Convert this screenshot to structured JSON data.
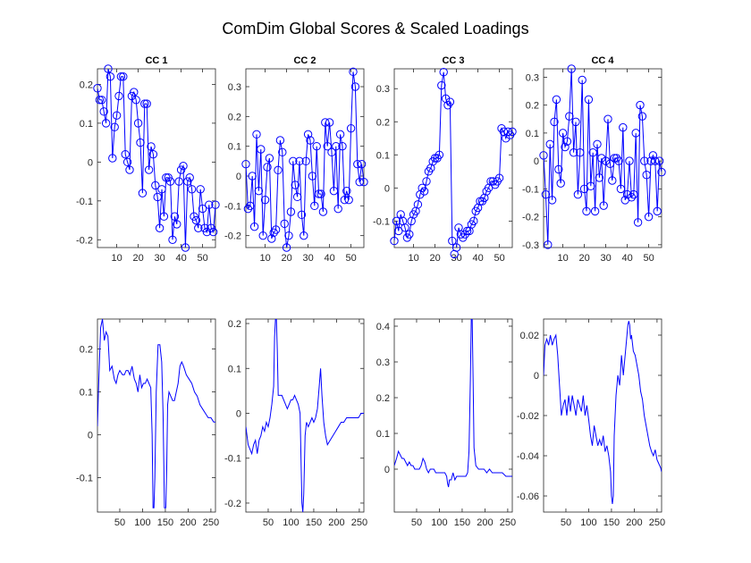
{
  "figure": {
    "title": "ComDim Global Scores & Scaled Loadings",
    "line_color": "#0000ff"
  },
  "chart_data": [
    {
      "type": "line",
      "marker": "circle",
      "title": "CC 1",
      "xlim": [
        1,
        56
      ],
      "ylim": [
        -0.22,
        0.24
      ],
      "xticks": [
        10,
        20,
        30,
        40,
        50
      ],
      "yticks": [
        -0.2,
        -0.1,
        0,
        0.1,
        0.2
      ],
      "y": [
        0.19,
        0.16,
        0.16,
        0.13,
        0.1,
        0.24,
        0.22,
        0.01,
        0.09,
        0.12,
        0.17,
        0.22,
        0.22,
        0.02,
        0.0,
        -0.02,
        0.17,
        0.18,
        0.16,
        0.1,
        0.05,
        -0.08,
        0.15,
        0.15,
        -0.02,
        0.04,
        0.02,
        -0.06,
        -0.09,
        -0.17,
        -0.07,
        -0.14,
        -0.04,
        -0.04,
        -0.05,
        -0.2,
        -0.14,
        -0.16,
        -0.05,
        -0.02,
        -0.01,
        -0.22,
        -0.05,
        -0.04,
        -0.07,
        -0.14,
        -0.15,
        -0.17,
        -0.07,
        -0.12,
        -0.17,
        -0.18,
        -0.11,
        -0.17,
        -0.18,
        -0.11
      ]
    },
    {
      "type": "line",
      "marker": "circle",
      "title": "CC 2",
      "xlim": [
        1,
        56
      ],
      "ylim": [
        -0.24,
        0.36
      ],
      "xticks": [
        10,
        20,
        30,
        40,
        50
      ],
      "yticks": [
        -0.2,
        -0.1,
        0,
        0.1,
        0.2,
        0.3
      ],
      "y": [
        0.04,
        -0.11,
        -0.1,
        0.0,
        -0.17,
        0.14,
        -0.05,
        0.09,
        -0.2,
        -0.08,
        0.03,
        0.06,
        -0.21,
        -0.19,
        -0.18,
        0.02,
        0.12,
        0.08,
        -0.16,
        -0.24,
        -0.2,
        -0.12,
        0.05,
        -0.03,
        -0.07,
        0.05,
        -0.13,
        -0.2,
        0.05,
        0.14,
        0.12,
        0.0,
        -0.1,
        0.1,
        -0.06,
        -0.06,
        -0.12,
        0.18,
        0.1,
        0.18,
        0.08,
        -0.05,
        0.1,
        -0.11,
        0.14,
        0.1,
        -0.08,
        -0.05,
        -0.08,
        0.16,
        0.35,
        0.3,
        0.04,
        -0.02,
        0.04,
        -0.02
      ]
    },
    {
      "type": "line",
      "marker": "circle",
      "title": "CC 3",
      "xlim": [
        1,
        56
      ],
      "ylim": [
        -0.18,
        0.36
      ],
      "xticks": [
        10,
        20,
        30,
        40,
        50
      ],
      "yticks": [
        -0.1,
        0,
        0.1,
        0.2,
        0.3
      ],
      "y": [
        -0.16,
        -0.1,
        -0.13,
        -0.08,
        -0.1,
        -0.12,
        -0.15,
        -0.14,
        -0.1,
        -0.08,
        -0.07,
        -0.05,
        -0.02,
        0.0,
        -0.01,
        0.02,
        0.05,
        0.06,
        0.08,
        0.09,
        0.09,
        0.1,
        0.31,
        0.35,
        0.27,
        0.25,
        0.26,
        -0.16,
        -0.2,
        -0.18,
        -0.12,
        -0.14,
        -0.15,
        -0.14,
        -0.13,
        -0.13,
        -0.11,
        -0.1,
        -0.07,
        -0.06,
        -0.04,
        -0.04,
        -0.03,
        -0.01,
        0.0,
        0.02,
        0.02,
        0.01,
        0.02,
        0.03,
        0.18,
        0.17,
        0.15,
        0.17,
        0.16,
        0.17
      ]
    },
    {
      "type": "line",
      "marker": "circle",
      "title": "CC 4",
      "xlim": [
        1,
        56
      ],
      "ylim": [
        -0.31,
        0.33
      ],
      "xticks": [
        10,
        20,
        30,
        40,
        50
      ],
      "yticks": [
        -0.3,
        -0.2,
        -0.1,
        0,
        0.1,
        0.2,
        0.3
      ],
      "y": [
        0.02,
        -0.12,
        -0.3,
        0.06,
        -0.14,
        0.14,
        0.22,
        -0.03,
        -0.08,
        0.1,
        0.05,
        0.07,
        0.16,
        0.33,
        0.03,
        0.14,
        -0.12,
        0.03,
        0.29,
        -0.1,
        -0.18,
        0.22,
        -0.09,
        0.03,
        -0.18,
        0.06,
        -0.06,
        0.01,
        -0.16,
        0.0,
        0.15,
        -0.01,
        -0.07,
        0.01,
        0.01,
        0.0,
        -0.1,
        0.12,
        -0.14,
        -0.12,
        0.0,
        -0.13,
        -0.12,
        0.1,
        -0.22,
        0.2,
        0.16,
        0.0,
        -0.05,
        -0.2,
        0.0,
        0.02,
        0.0,
        -0.18,
        0.0,
        -0.04
      ]
    },
    {
      "type": "line",
      "title": "",
      "xlim": [
        1,
        260
      ],
      "ylim": [
        -0.18,
        0.27
      ],
      "xticks": [
        50,
        100,
        150,
        200,
        250
      ],
      "yticks": [
        -0.1,
        0,
        0.1,
        0.2
      ],
      "points": [
        [
          1,
          0.02
        ],
        [
          4,
          0.13
        ],
        [
          8,
          0.25
        ],
        [
          12,
          0.27
        ],
        [
          16,
          0.22
        ],
        [
          20,
          0.24
        ],
        [
          24,
          0.23
        ],
        [
          28,
          0.15
        ],
        [
          33,
          0.16
        ],
        [
          38,
          0.13
        ],
        [
          42,
          0.12
        ],
        [
          46,
          0.14
        ],
        [
          50,
          0.15
        ],
        [
          56,
          0.14
        ],
        [
          60,
          0.14
        ],
        [
          64,
          0.15
        ],
        [
          68,
          0.15
        ],
        [
          72,
          0.14
        ],
        [
          77,
          0.16
        ],
        [
          82,
          0.13
        ],
        [
          86,
          0.12
        ],
        [
          90,
          0.1
        ],
        [
          94,
          0.14
        ],
        [
          98,
          0.11
        ],
        [
          102,
          0.12
        ],
        [
          106,
          0.12
        ],
        [
          110,
          0.13
        ],
        [
          114,
          0.12
        ],
        [
          118,
          0.11
        ],
        [
          121,
          0.0
        ],
        [
          123,
          -0.17
        ],
        [
          125,
          -0.17
        ],
        [
          127,
          -0.1
        ],
        [
          130,
          0.1
        ],
        [
          134,
          0.21
        ],
        [
          138,
          0.21
        ],
        [
          142,
          0.17
        ],
        [
          145,
          0.05
        ],
        [
          148,
          -0.17
        ],
        [
          151,
          -0.17
        ],
        [
          153,
          -0.08
        ],
        [
          155,
          0.07
        ],
        [
          158,
          0.1
        ],
        [
          162,
          0.09
        ],
        [
          166,
          0.08
        ],
        [
          170,
          0.08
        ],
        [
          174,
          0.1
        ],
        [
          178,
          0.12
        ],
        [
          182,
          0.16
        ],
        [
          186,
          0.17
        ],
        [
          190,
          0.16
        ],
        [
          196,
          0.14
        ],
        [
          202,
          0.13
        ],
        [
          208,
          0.12
        ],
        [
          214,
          0.1
        ],
        [
          220,
          0.09
        ],
        [
          226,
          0.07
        ],
        [
          232,
          0.06
        ],
        [
          238,
          0.05
        ],
        [
          244,
          0.04
        ],
        [
          250,
          0.04
        ],
        [
          256,
          0.03
        ],
        [
          260,
          0.03
        ]
      ]
    },
    {
      "type": "line",
      "title": "",
      "xlim": [
        1,
        260
      ],
      "ylim": [
        -0.22,
        0.21
      ],
      "xticks": [
        50,
        100,
        150,
        200,
        250
      ],
      "yticks": [
        -0.2,
        -0.1,
        0,
        0.1,
        0.2
      ],
      "points": [
        [
          1,
          -0.03
        ],
        [
          6,
          -0.07
        ],
        [
          10,
          -0.08
        ],
        [
          14,
          -0.09
        ],
        [
          18,
          -0.07
        ],
        [
          22,
          -0.06
        ],
        [
          26,
          -0.09
        ],
        [
          30,
          -0.06
        ],
        [
          34,
          -0.05
        ],
        [
          38,
          -0.03
        ],
        [
          42,
          -0.04
        ],
        [
          46,
          -0.02
        ],
        [
          50,
          -0.03
        ],
        [
          54,
          -0.01
        ],
        [
          58,
          0.02
        ],
        [
          62,
          0.06
        ],
        [
          64,
          0.17
        ],
        [
          66,
          0.21
        ],
        [
          68,
          0.21
        ],
        [
          70,
          0.14
        ],
        [
          72,
          0.04
        ],
        [
          76,
          0.04
        ],
        [
          80,
          0.04
        ],
        [
          84,
          0.03
        ],
        [
          88,
          0.02
        ],
        [
          92,
          0.01
        ],
        [
          96,
          0.02
        ],
        [
          100,
          0.03
        ],
        [
          104,
          0.03
        ],
        [
          108,
          0.04
        ],
        [
          112,
          0.03
        ],
        [
          116,
          0.02
        ],
        [
          120,
          0.0
        ],
        [
          122,
          -0.1
        ],
        [
          124,
          -0.2
        ],
        [
          126,
          -0.22
        ],
        [
          128,
          -0.18
        ],
        [
          131,
          -0.05
        ],
        [
          134,
          -0.02
        ],
        [
          138,
          -0.03
        ],
        [
          142,
          -0.02
        ],
        [
          146,
          -0.01
        ],
        [
          150,
          -0.02
        ],
        [
          154,
          -0.01
        ],
        [
          158,
          0.01
        ],
        [
          162,
          0.06
        ],
        [
          165,
          0.1
        ],
        [
          168,
          0.04
        ],
        [
          172,
          -0.02
        ],
        [
          176,
          -0.05
        ],
        [
          180,
          -0.07
        ],
        [
          186,
          -0.06
        ],
        [
          192,
          -0.05
        ],
        [
          198,
          -0.04
        ],
        [
          204,
          -0.03
        ],
        [
          210,
          -0.02
        ],
        [
          216,
          -0.02
        ],
        [
          222,
          -0.01
        ],
        [
          228,
          -0.01
        ],
        [
          234,
          -0.01
        ],
        [
          240,
          -0.01
        ],
        [
          248,
          -0.01
        ],
        [
          254,
          0.0
        ],
        [
          260,
          0.0
        ]
      ]
    },
    {
      "type": "line",
      "title": "",
      "xlim": [
        1,
        260
      ],
      "ylim": [
        -0.12,
        0.42
      ],
      "xticks": [
        50,
        100,
        150,
        200,
        250
      ],
      "yticks": [
        0,
        0.1,
        0.2,
        0.3,
        0.4
      ],
      "points": [
        [
          1,
          0.01
        ],
        [
          6,
          0.03
        ],
        [
          10,
          0.05
        ],
        [
          14,
          0.04
        ],
        [
          18,
          0.03
        ],
        [
          22,
          0.03
        ],
        [
          26,
          0.02
        ],
        [
          30,
          0.01
        ],
        [
          34,
          0.02
        ],
        [
          38,
          0.01
        ],
        [
          42,
          0.01
        ],
        [
          46,
          0.0
        ],
        [
          50,
          0.0
        ],
        [
          56,
          0.0
        ],
        [
          60,
          0.01
        ],
        [
          64,
          0.03
        ],
        [
          68,
          0.02
        ],
        [
          72,
          0.0
        ],
        [
          76,
          -0.01
        ],
        [
          80,
          0.0
        ],
        [
          84,
          0.0
        ],
        [
          88,
          0.0
        ],
        [
          92,
          -0.01
        ],
        [
          96,
          -0.01
        ],
        [
          100,
          -0.01
        ],
        [
          104,
          -0.01
        ],
        [
          108,
          -0.01
        ],
        [
          112,
          -0.01
        ],
        [
          116,
          -0.02
        ],
        [
          118,
          -0.04
        ],
        [
          120,
          -0.05
        ],
        [
          122,
          -0.03
        ],
        [
          126,
          -0.03
        ],
        [
          130,
          -0.01
        ],
        [
          134,
          -0.03
        ],
        [
          138,
          -0.02
        ],
        [
          142,
          -0.02
        ],
        [
          146,
          -0.02
        ],
        [
          150,
          -0.02
        ],
        [
          154,
          -0.02
        ],
        [
          158,
          -0.02
        ],
        [
          162,
          -0.01
        ],
        [
          165,
          0.05
        ],
        [
          168,
          0.25
        ],
        [
          170,
          0.42
        ],
        [
          172,
          0.42
        ],
        [
          174,
          0.25
        ],
        [
          176,
          0.06
        ],
        [
          180,
          0.01
        ],
        [
          186,
          0.0
        ],
        [
          192,
          0.0
        ],
        [
          198,
          0.0
        ],
        [
          204,
          -0.01
        ],
        [
          210,
          0.0
        ],
        [
          216,
          -0.01
        ],
        [
          222,
          -0.01
        ],
        [
          230,
          -0.01
        ],
        [
          238,
          -0.01
        ],
        [
          246,
          -0.02
        ],
        [
          254,
          -0.02
        ],
        [
          260,
          -0.02
        ]
      ]
    },
    {
      "type": "line",
      "title": "",
      "xlim": [
        1,
        260
      ],
      "ylim": [
        -0.068,
        0.028
      ],
      "xticks": [
        50,
        100,
        150,
        200,
        250
      ],
      "yticks": [
        -0.06,
        -0.04,
        -0.02,
        0,
        0.02
      ],
      "points": [
        [
          1,
          0.0
        ],
        [
          4,
          0.015
        ],
        [
          8,
          0.018
        ],
        [
          12,
          0.015
        ],
        [
          16,
          0.02
        ],
        [
          20,
          0.015
        ],
        [
          24,
          0.018
        ],
        [
          28,
          0.02
        ],
        [
          32,
          0.01
        ],
        [
          36,
          -0.005
        ],
        [
          40,
          -0.02
        ],
        [
          44,
          -0.015
        ],
        [
          48,
          -0.012
        ],
        [
          52,
          -0.02
        ],
        [
          56,
          -0.01
        ],
        [
          60,
          -0.018
        ],
        [
          64,
          -0.01
        ],
        [
          68,
          -0.015
        ],
        [
          72,
          -0.02
        ],
        [
          76,
          -0.012
        ],
        [
          80,
          -0.015
        ],
        [
          84,
          -0.018
        ],
        [
          88,
          -0.01
        ],
        [
          92,
          -0.02
        ],
        [
          96,
          -0.015
        ],
        [
          100,
          -0.022
        ],
        [
          104,
          -0.03
        ],
        [
          108,
          -0.035
        ],
        [
          112,
          -0.025
        ],
        [
          116,
          -0.03
        ],
        [
          120,
          -0.035
        ],
        [
          124,
          -0.032
        ],
        [
          128,
          -0.035
        ],
        [
          132,
          -0.03
        ],
        [
          136,
          -0.038
        ],
        [
          140,
          -0.035
        ],
        [
          144,
          -0.04
        ],
        [
          148,
          -0.048
        ],
        [
          150,
          -0.06
        ],
        [
          152,
          -0.064
        ],
        [
          154,
          -0.06
        ],
        [
          156,
          -0.03
        ],
        [
          160,
          -0.01
        ],
        [
          164,
          0.0
        ],
        [
          168,
          -0.005
        ],
        [
          172,
          0.01
        ],
        [
          176,
          0.0
        ],
        [
          180,
          0.01
        ],
        [
          184,
          0.02
        ],
        [
          186,
          0.025
        ],
        [
          188,
          0.027
        ],
        [
          190,
          0.025
        ],
        [
          192,
          0.018
        ],
        [
          194,
          0.02
        ],
        [
          198,
          0.012
        ],
        [
          202,
          0.01
        ],
        [
          206,
          0.005
        ],
        [
          210,
          0.0
        ],
        [
          214,
          -0.008
        ],
        [
          218,
          -0.012
        ],
        [
          222,
          -0.02
        ],
        [
          226,
          -0.025
        ],
        [
          230,
          -0.03
        ],
        [
          234,
          -0.035
        ],
        [
          238,
          -0.038
        ],
        [
          242,
          -0.04
        ],
        [
          246,
          -0.037
        ],
        [
          250,
          -0.042
        ],
        [
          254,
          -0.044
        ],
        [
          258,
          -0.046
        ],
        [
          260,
          -0.048
        ]
      ]
    }
  ]
}
